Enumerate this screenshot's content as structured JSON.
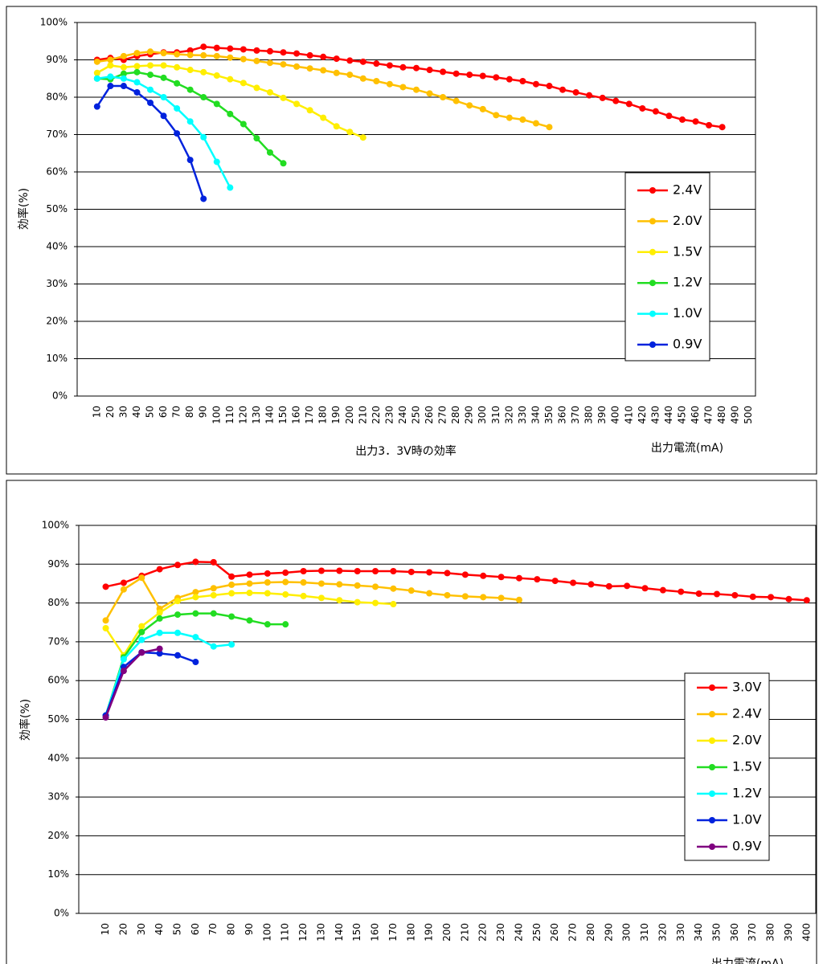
{
  "chart_data": [
    {
      "type": "line",
      "title": "出力3．3V時の効率",
      "x_label": "出力電流(mA)",
      "y_label": "効率(%)",
      "categories": [
        null,
        "10",
        "20",
        "30",
        "40",
        "50",
        "60",
        "70",
        "80",
        "90",
        "100",
        "110",
        "120",
        "130",
        "140",
        "150",
        "160",
        "170",
        "180",
        "190",
        "200",
        "210",
        "220",
        "230",
        "240",
        "250",
        "260",
        "270",
        "280",
        "290",
        "300",
        "310",
        "320",
        "330",
        "340",
        "350",
        "360",
        "370",
        "380",
        "390",
        "400",
        "410",
        "420",
        "430",
        "440",
        "450",
        "460",
        "470",
        "480",
        "490",
        "500"
      ],
      "ylim": [
        0,
        100
      ],
      "yticks": [
        {
          "value": 0,
          "label": "0%"
        },
        {
          "value": 10,
          "label": "10%"
        },
        {
          "value": 20,
          "label": "20%"
        },
        {
          "value": 30,
          "label": "30%"
        },
        {
          "value": 40,
          "label": "40%"
        },
        {
          "value": 50,
          "label": "50%"
        },
        {
          "value": 60,
          "label": "60%"
        },
        {
          "value": 70,
          "label": "70%"
        },
        {
          "value": 80,
          "label": "80%"
        },
        {
          "value": 90,
          "label": "90%"
        },
        {
          "value": 100,
          "label": "100%"
        }
      ],
      "grid": true,
      "legend": "right",
      "series": [
        {
          "name": "2.4V",
          "color": "#ff0000",
          "values": [
            null,
            90,
            90.5,
            90,
            91,
            91.5,
            92,
            92,
            92.5,
            93.5,
            93.2,
            93,
            92.8,
            92.5,
            92.3,
            92,
            91.7,
            91.2,
            90.8,
            90.3,
            89.8,
            89.5,
            89,
            88.5,
            88,
            87.8,
            87.3,
            86.8,
            86.3,
            86,
            85.7,
            85.3,
            84.8,
            84.3,
            83.5,
            83,
            82,
            81.3,
            80.5,
            79.8,
            79,
            78.2,
            77,
            76.2,
            75,
            74,
            73.5,
            72.5,
            72,
            null,
            null
          ]
        },
        {
          "name": "2.0V",
          "color": "#ffc000",
          "values": [
            null,
            89.5,
            90,
            91,
            91.8,
            92.2,
            91.8,
            91.5,
            91.3,
            91.2,
            91,
            90.6,
            90.2,
            89.7,
            89.2,
            88.8,
            88.2,
            87.7,
            87.2,
            86.5,
            86,
            85,
            84.3,
            83.5,
            82.7,
            82,
            81,
            80,
            79,
            77.8,
            76.8,
            75.2,
            74.5,
            74,
            73,
            72,
            null,
            null,
            null,
            null,
            null,
            null,
            null,
            null,
            null,
            null,
            null,
            null,
            null,
            null,
            null
          ]
        },
        {
          "name": "1.5V",
          "color": "#ffee00",
          "values": [
            null,
            86.5,
            88.5,
            88,
            88.3,
            88.5,
            88.5,
            88,
            87.3,
            86.7,
            85.8,
            84.8,
            83.8,
            82.5,
            81.3,
            79.8,
            78.2,
            76.5,
            74.5,
            72.2,
            70.7,
            69.2,
            null,
            null,
            null,
            null,
            null,
            null,
            null,
            null,
            null,
            null,
            null,
            null,
            null,
            null,
            null,
            null,
            null,
            null,
            null,
            null,
            null,
            null,
            null,
            null,
            null,
            null,
            null,
            null,
            null
          ]
        },
        {
          "name": "1.2V",
          "color": "#22dd22",
          "values": [
            null,
            85,
            84.8,
            86.3,
            86.7,
            86,
            85.2,
            83.7,
            82,
            80,
            78.2,
            75.5,
            72.8,
            69,
            65.2,
            62.3,
            null,
            null,
            null,
            null,
            null,
            null,
            null,
            null,
            null,
            null,
            null,
            null,
            null,
            null,
            null,
            null,
            null,
            null,
            null,
            null,
            null,
            null,
            null,
            null,
            null,
            null,
            null,
            null,
            null,
            null,
            null,
            null,
            null,
            null,
            null
          ]
        },
        {
          "name": "1.0V",
          "color": "#00ffff",
          "values": [
            null,
            85,
            85.5,
            85,
            84,
            82,
            80,
            77,
            73.5,
            69.3,
            62.7,
            55.8,
            null,
            null,
            null,
            null,
            null,
            null,
            null,
            null,
            null,
            null,
            null,
            null,
            null,
            null,
            null,
            null,
            null,
            null,
            null,
            null,
            null,
            null,
            null,
            null,
            null,
            null,
            null,
            null,
            null,
            null,
            null,
            null,
            null,
            null,
            null,
            null,
            null,
            null,
            null
          ]
        },
        {
          "name": "0.9V",
          "color": "#0022dd",
          "values": [
            null,
            77.5,
            83,
            83,
            81.3,
            78.5,
            75,
            70.3,
            63.2,
            52.8,
            null,
            null,
            null,
            null,
            null,
            null,
            null,
            null,
            null,
            null,
            null,
            null,
            null,
            null,
            null,
            null,
            null,
            null,
            null,
            null,
            null,
            null,
            null,
            null,
            null,
            null,
            null,
            null,
            null,
            null,
            null,
            null,
            null,
            null,
            null,
            null,
            null,
            null,
            null,
            null,
            null
          ]
        }
      ]
    },
    {
      "type": "line",
      "x_label": "出力電流(mA)",
      "y_label": "効率(%)",
      "categories": [
        null,
        "10",
        "20",
        "30",
        "40",
        "50",
        "60",
        "70",
        "80",
        "90",
        "100",
        "110",
        "120",
        "130",
        "140",
        "150",
        "160",
        "170",
        "180",
        "190",
        "200",
        "210",
        "220",
        "230",
        "240",
        "250",
        "260",
        "270",
        "280",
        "290",
        "300",
        "310",
        "320",
        "330",
        "340",
        "350",
        "360",
        "370",
        "380",
        "390",
        "400"
      ],
      "ylim": [
        0,
        100
      ],
      "yticks": [
        {
          "value": 0,
          "label": "0%"
        },
        {
          "value": 10,
          "label": "10%"
        },
        {
          "value": 20,
          "label": "20%"
        },
        {
          "value": 30,
          "label": "30%"
        },
        {
          "value": 40,
          "label": "40%"
        },
        {
          "value": 50,
          "label": "50%"
        },
        {
          "value": 60,
          "label": "60%"
        },
        {
          "value": 70,
          "label": "70%"
        },
        {
          "value": 80,
          "label": "80%"
        },
        {
          "value": 90,
          "label": "90%"
        },
        {
          "value": 100,
          "label": "100%"
        }
      ],
      "grid": true,
      "legend": "right",
      "series": [
        {
          "name": "3.0V",
          "color": "#ff0000",
          "values": [
            null,
            84.2,
            85.2,
            87,
            88.7,
            89.8,
            90.6,
            90.5,
            86.8,
            87.3,
            87.6,
            87.8,
            88.2,
            88.3,
            88.3,
            88.2,
            88.2,
            88.2,
            88,
            87.9,
            87.7,
            87.3,
            87,
            86.7,
            86.4,
            86.1,
            85.7,
            85.2,
            84.8,
            84.3,
            84.4,
            83.8,
            83.3,
            82.9,
            82.4,
            82.3,
            82,
            81.6,
            81.5,
            81,
            80.7
          ]
        },
        {
          "name": "2.4V",
          "color": "#ffc000",
          "values": [
            null,
            75.5,
            83.5,
            86.5,
            78.5,
            81.3,
            82.8,
            83.8,
            84.7,
            85,
            85.3,
            85.4,
            85.3,
            85,
            84.8,
            84.5,
            84.2,
            83.7,
            83.2,
            82.5,
            82,
            81.7,
            81.5,
            81.3,
            80.8,
            null,
            null,
            null,
            null,
            null,
            null,
            null,
            null,
            null,
            null,
            null,
            null,
            null,
            null,
            null,
            null
          ]
        },
        {
          "name": "2.0V",
          "color": "#ffee00",
          "values": [
            null,
            73.5,
            66.5,
            74,
            77.5,
            80.5,
            81.5,
            82,
            82.5,
            82.6,
            82.5,
            82.2,
            81.8,
            81.3,
            80.7,
            80.2,
            80,
            79.7,
            null,
            null,
            null,
            null,
            null,
            null,
            null,
            null,
            null,
            null,
            null,
            null,
            null,
            null,
            null,
            null,
            null,
            null,
            null,
            null,
            null,
            null,
            null
          ]
        },
        {
          "name": "1.5V",
          "color": "#22dd22",
          "values": [
            null,
            51,
            66,
            72.5,
            76,
            77,
            77.3,
            77.3,
            76.5,
            75.5,
            74.5,
            74.5,
            null,
            null,
            null,
            null,
            null,
            null,
            null,
            null,
            null,
            null,
            null,
            null,
            null,
            null,
            null,
            null,
            null,
            null,
            null,
            null,
            null,
            null,
            null,
            null,
            null,
            null,
            null,
            null,
            null
          ]
        },
        {
          "name": "1.2V",
          "color": "#00ffff",
          "values": [
            null,
            51,
            65.5,
            70.5,
            72.3,
            72.3,
            71.2,
            68.8,
            69.3,
            null,
            null,
            null,
            null,
            null,
            null,
            null,
            null,
            null,
            null,
            null,
            null,
            null,
            null,
            null,
            null,
            null,
            null,
            null,
            null,
            null,
            null,
            null,
            null,
            null,
            null,
            null,
            null,
            null,
            null,
            null,
            null
          ]
        },
        {
          "name": "1.0V",
          "color": "#0022dd",
          "values": [
            null,
            51,
            63.5,
            67.3,
            67,
            66.5,
            64.8,
            null,
            null,
            null,
            null,
            null,
            null,
            null,
            null,
            null,
            null,
            null,
            null,
            null,
            null,
            null,
            null,
            null,
            null,
            null,
            null,
            null,
            null,
            null,
            null,
            null,
            null,
            null,
            null,
            null,
            null,
            null,
            null,
            null,
            null
          ]
        },
        {
          "name": "0.9V",
          "color": "#800080",
          "values": [
            null,
            50.5,
            62.5,
            67.2,
            68.2,
            null,
            null,
            null,
            null,
            null,
            null,
            null,
            null,
            null,
            null,
            null,
            null,
            null,
            null,
            null,
            null,
            null,
            null,
            null,
            null,
            null,
            null,
            null,
            null,
            null,
            null,
            null,
            null,
            null,
            null,
            null,
            null,
            null,
            null,
            null,
            null
          ]
        }
      ]
    }
  ]
}
